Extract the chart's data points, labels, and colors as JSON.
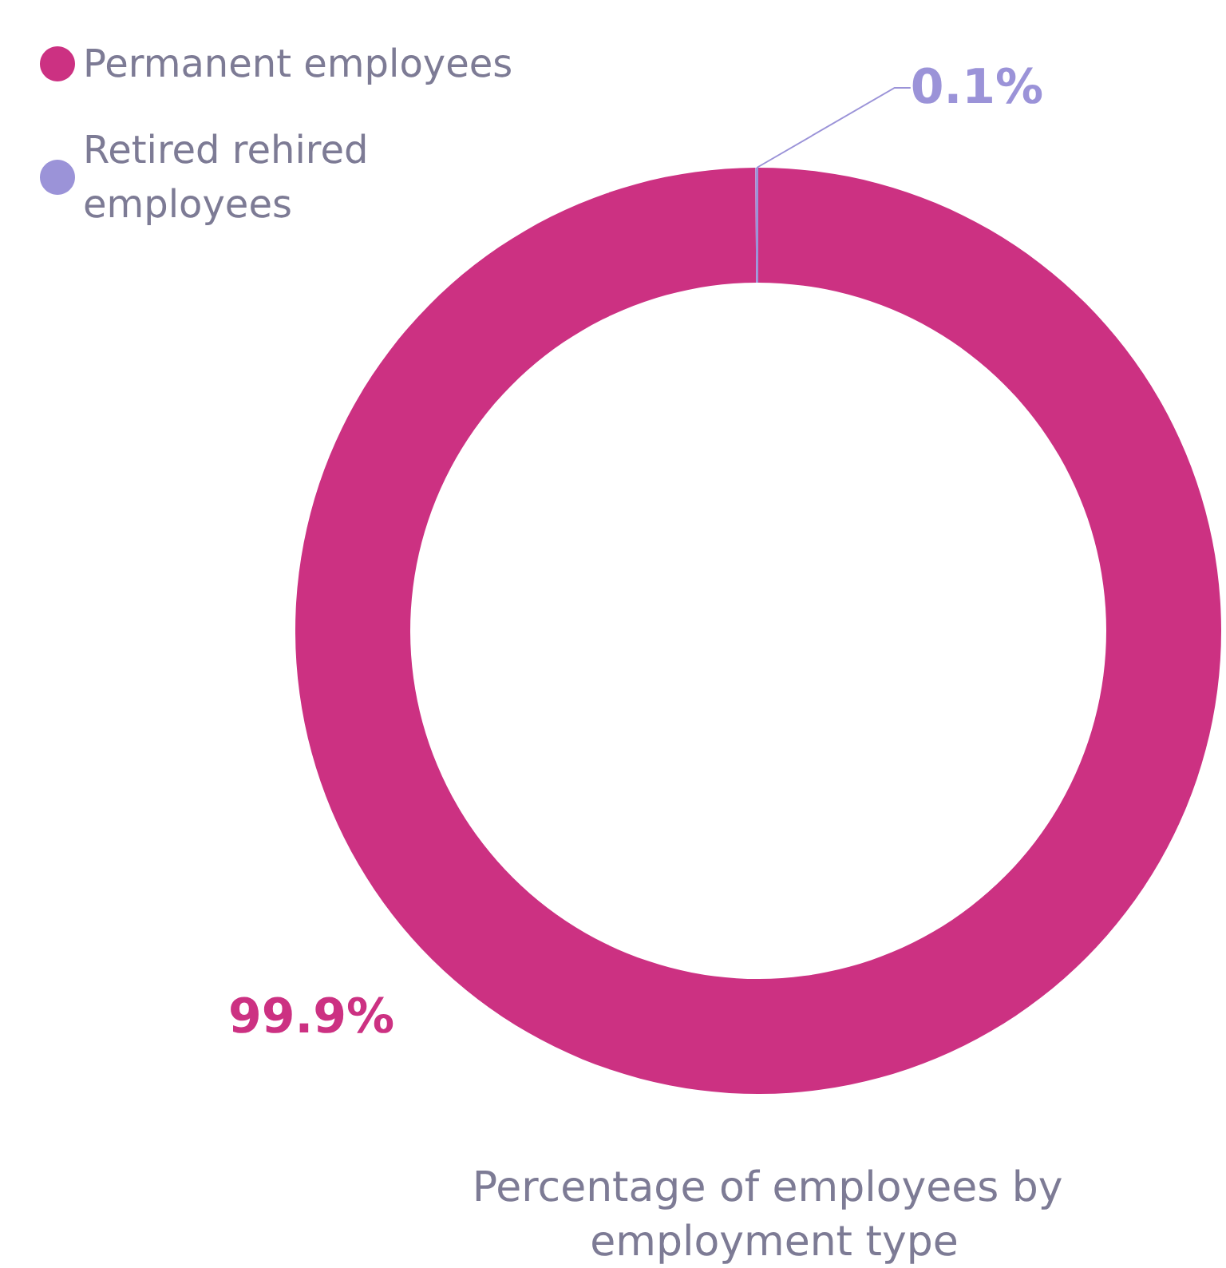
{
  "chart_data": {
    "type": "donut",
    "title": "Percentage of employees by employment type",
    "categories": [
      "Permanent employees",
      "Retired rehired employees"
    ],
    "values": [
      99.9,
      0.1
    ],
    "colors": [
      "#cc3182",
      "#9b93d8"
    ],
    "value_labels": [
      "99.9%",
      "0.1%"
    ],
    "legend": "top left"
  }
}
